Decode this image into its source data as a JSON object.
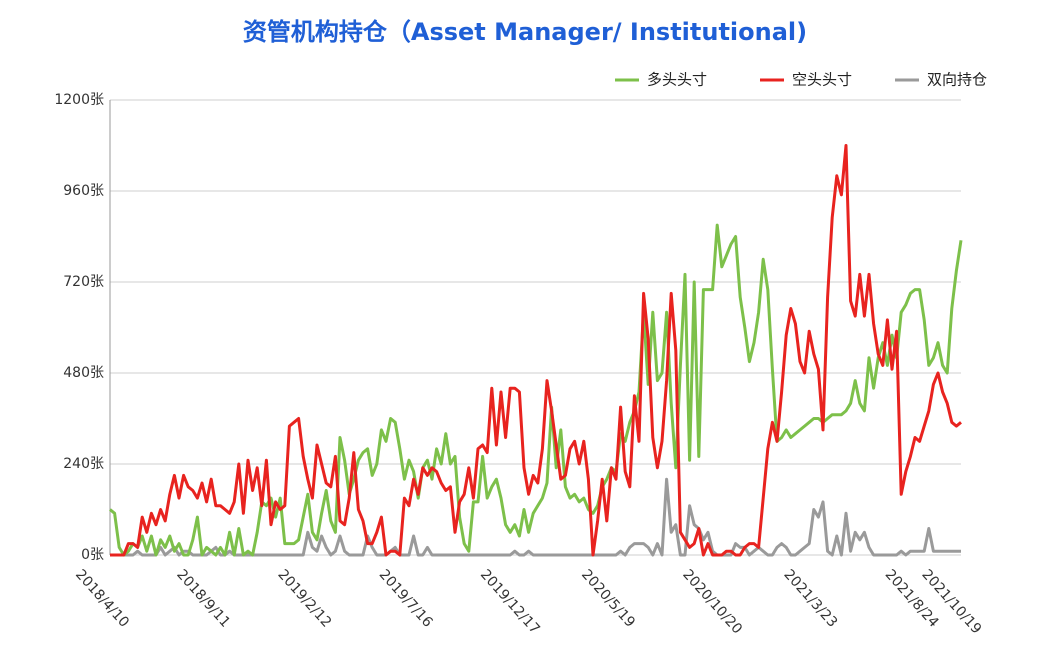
{
  "chart_data": {
    "type": "line",
    "title": "资管机构持仓（Asset Manager/ Institutional)",
    "categories": [
      "2018/4/10",
      null,
      null,
      null,
      null,
      null,
      null,
      null,
      null,
      null,
      null,
      null,
      null,
      null,
      null,
      null,
      null,
      null,
      null,
      null,
      null,
      null,
      "2018/9/11",
      null,
      null,
      null,
      null,
      null,
      null,
      null,
      null,
      null,
      null,
      null,
      null,
      null,
      null,
      null,
      null,
      null,
      null,
      null,
      null,
      null,
      "2019/2/12",
      null,
      null,
      null,
      null,
      null,
      null,
      null,
      null,
      null,
      null,
      null,
      null,
      null,
      null,
      null,
      null,
      null,
      null,
      null,
      null,
      null,
      "2019/7/16",
      null,
      null,
      null,
      null,
      null,
      null,
      null,
      null,
      null,
      null,
      null,
      null,
      null,
      null,
      null,
      null,
      null,
      null,
      null,
      null,
      null,
      "2019/12/17",
      null,
      null,
      null,
      null,
      null,
      null,
      null,
      null,
      null,
      null,
      null,
      null,
      null,
      null,
      null,
      null,
      null,
      null,
      null,
      null,
      null,
      "2020/5/19",
      null,
      null,
      null,
      null,
      null,
      null,
      null,
      null,
      null,
      null,
      null,
      null,
      null,
      null,
      null,
      null,
      null,
      null,
      null,
      null,
      null,
      "2020/10/20",
      null,
      null,
      null,
      null,
      null,
      null,
      null,
      null,
      null,
      null,
      null,
      null,
      null,
      null,
      null,
      null,
      null,
      null,
      null,
      null,
      null,
      "2021/3/23",
      null,
      null,
      null,
      null,
      null,
      null,
      null,
      null,
      null,
      null,
      null,
      null,
      null,
      null,
      null,
      null,
      null,
      null,
      null,
      null,
      null,
      "2021/8/24",
      null,
      null,
      null,
      null,
      null,
      null,
      null,
      "2021/10/19",
      null
    ],
    "series": [
      {
        "name": "多头头寸",
        "color": "#7dc04a",
        "values": [
          120,
          110,
          20,
          0,
          10,
          30,
          20,
          50,
          10,
          50,
          0,
          40,
          20,
          50,
          10,
          30,
          0,
          0,
          40,
          100,
          0,
          20,
          10,
          0,
          20,
          0,
          60,
          0,
          70,
          0,
          10,
          0,
          60,
          140,
          130,
          150,
          100,
          150,
          30,
          30,
          30,
          40,
          100,
          160,
          60,
          40,
          110,
          170,
          90,
          60,
          310,
          250,
          160,
          200,
          250,
          270,
          280,
          210,
          240,
          330,
          300,
          360,
          350,
          280,
          200,
          250,
          220,
          150,
          230,
          250,
          200,
          280,
          240,
          320,
          240,
          260,
          100,
          30,
          10,
          140,
          140,
          260,
          150,
          180,
          200,
          150,
          80,
          60,
          80,
          50,
          120,
          60,
          110,
          130,
          150,
          190,
          390,
          230,
          330,
          180,
          150,
          160,
          140,
          150,
          120,
          110,
          130,
          180,
          200,
          230,
          220,
          320,
          300,
          350,
          380,
          430,
          640,
          450,
          640,
          460,
          480,
          640,
          400,
          230,
          500,
          740,
          250,
          720,
          260,
          700,
          700,
          700,
          870,
          760,
          790,
          820,
          840,
          680,
          600,
          510,
          560,
          640,
          780,
          700,
          490,
          300,
          310,
          330,
          310,
          320,
          330,
          340,
          350,
          360,
          360,
          350,
          360,
          370,
          370,
          370,
          380,
          400,
          460,
          400,
          380,
          520,
          440,
          520,
          560,
          500,
          580,
          520,
          640,
          660,
          690,
          700,
          700,
          620,
          500,
          520,
          560,
          500,
          480,
          650,
          750,
          830
        ]
      },
      {
        "name": "空头头寸",
        "color": "#e8231f",
        "values": [
          0,
          0,
          0,
          0,
          30,
          30,
          20,
          100,
          60,
          110,
          80,
          120,
          90,
          160,
          210,
          150,
          210,
          180,
          170,
          150,
          190,
          140,
          200,
          130,
          130,
          120,
          110,
          140,
          240,
          110,
          250,
          170,
          230,
          130,
          250,
          80,
          140,
          120,
          130,
          340,
          350,
          360,
          260,
          200,
          150,
          290,
          240,
          190,
          180,
          260,
          90,
          80,
          150,
          270,
          120,
          90,
          30,
          30,
          60,
          100,
          0,
          10,
          10,
          0,
          150,
          130,
          200,
          160,
          230,
          210,
          230,
          220,
          190,
          170,
          180,
          60,
          140,
          160,
          230,
          150,
          280,
          290,
          270,
          440,
          290,
          430,
          310,
          440,
          440,
          430,
          230,
          160,
          210,
          190,
          280,
          460,
          380,
          290,
          200,
          210,
          280,
          300,
          240,
          300,
          200,
          0,
          90,
          200,
          90,
          230,
          200,
          390,
          220,
          180,
          420,
          300,
          690,
          570,
          310,
          230,
          300,
          460,
          690,
          540,
          60,
          40,
          20,
          30,
          70,
          0,
          30,
          0,
          0,
          0,
          10,
          10,
          0,
          0,
          20,
          30,
          30,
          20,
          150,
          280,
          350,
          300,
          430,
          580,
          650,
          610,
          510,
          480,
          590,
          530,
          490,
          330,
          680,
          890,
          1000,
          950,
          1080,
          670,
          630,
          740,
          630,
          740,
          610,
          530,
          500,
          620,
          490,
          590,
          160,
          220,
          260,
          310,
          300,
          340,
          380,
          450,
          480,
          430,
          400,
          350,
          340,
          350
        ]
      },
      {
        "name": "双向持仓",
        "color": "#9a9a9a",
        "values": [
          0,
          0,
          0,
          0,
          0,
          0,
          10,
          0,
          0,
          0,
          0,
          20,
          0,
          10,
          20,
          0,
          10,
          10,
          0,
          0,
          0,
          0,
          10,
          20,
          0,
          0,
          10,
          0,
          0,
          0,
          0,
          0,
          0,
          0,
          0,
          0,
          0,
          0,
          0,
          0,
          0,
          0,
          0,
          60,
          20,
          10,
          50,
          20,
          0,
          10,
          50,
          10,
          0,
          0,
          0,
          0,
          50,
          20,
          0,
          0,
          0,
          10,
          20,
          0,
          0,
          0,
          50,
          0,
          0,
          20,
          0,
          0,
          0,
          0,
          0,
          0,
          0,
          0,
          0,
          0,
          0,
          0,
          0,
          0,
          0,
          0,
          0,
          0,
          10,
          0,
          0,
          10,
          0,
          0,
          0,
          0,
          0,
          0,
          0,
          0,
          0,
          0,
          0,
          0,
          0,
          0,
          0,
          0,
          0,
          0,
          0,
          10,
          0,
          20,
          30,
          30,
          30,
          20,
          0,
          30,
          0,
          200,
          60,
          80,
          0,
          0,
          130,
          80,
          70,
          40,
          60,
          10,
          0,
          0,
          0,
          0,
          30,
          20,
          20,
          0,
          10,
          20,
          10,
          0,
          0,
          20,
          30,
          20,
          0,
          0,
          10,
          20,
          30,
          120,
          100,
          140,
          10,
          0,
          50,
          0,
          110,
          10,
          60,
          40,
          60,
          20,
          0,
          0,
          0,
          0,
          0,
          0,
          10,
          0,
          10,
          10,
          10,
          10,
          70,
          10,
          10,
          10,
          10,
          10,
          10,
          10
        ]
      }
    ],
    "ylim": [
      0,
      1200
    ],
    "yticks": [
      {
        "value": 0,
        "label": "0张"
      },
      {
        "value": 240,
        "label": "240张"
      },
      {
        "value": 480,
        "label": "480张"
      },
      {
        "value": 720,
        "label": "720张"
      },
      {
        "value": 960,
        "label": "960张"
      },
      {
        "value": 1200,
        "label": "1200张"
      }
    ],
    "grid": true,
    "legend": "top-right"
  }
}
